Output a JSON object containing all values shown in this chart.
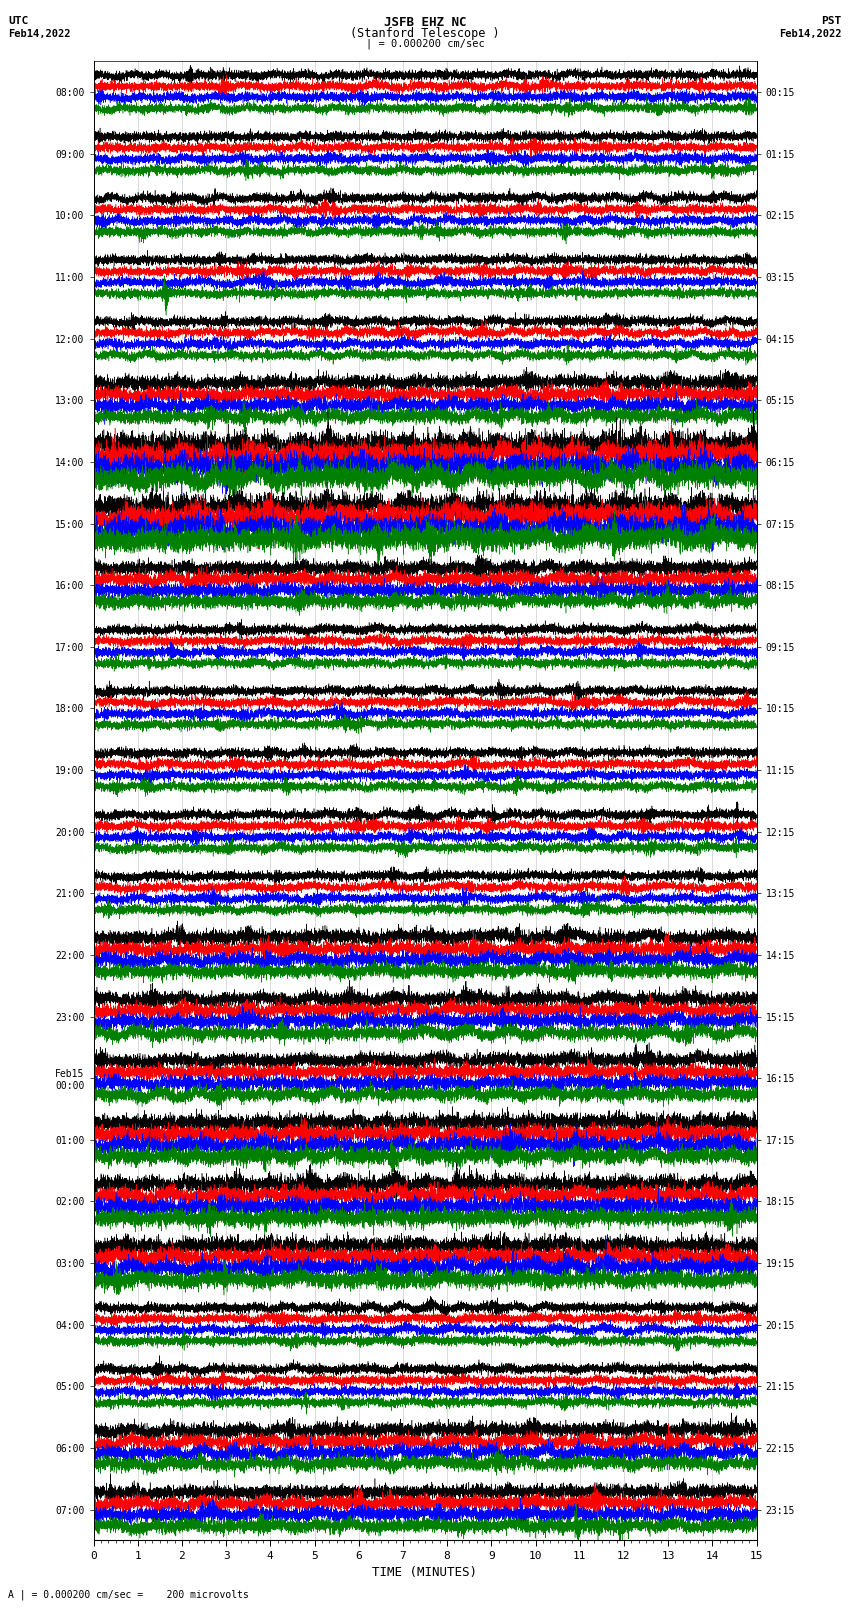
{
  "title_line1": "JSFB EHZ NC",
  "title_line2": "(Stanford Telescope )",
  "scale_text": "| = 0.000200 cm/sec",
  "label_left_top": "UTC",
  "label_left_date": "Feb14,2022",
  "label_right_top": "PST",
  "label_right_date": "Feb14,2022",
  "scale_annotation": "A | = 0.000200 cm/sec =    200 microvolts",
  "xlabel": "TIME (MINUTES)",
  "utc_times": [
    "08:00",
    "09:00",
    "10:00",
    "11:00",
    "12:00",
    "13:00",
    "14:00",
    "15:00",
    "16:00",
    "17:00",
    "18:00",
    "19:00",
    "20:00",
    "21:00",
    "22:00",
    "23:00",
    "Feb15\n00:00",
    "01:00",
    "02:00",
    "03:00",
    "04:00",
    "05:00",
    "06:00",
    "07:00"
  ],
  "pst_times": [
    "00:15",
    "01:15",
    "02:15",
    "03:15",
    "04:15",
    "05:15",
    "06:15",
    "07:15",
    "08:15",
    "09:15",
    "10:15",
    "11:15",
    "12:15",
    "13:15",
    "14:15",
    "15:15",
    "16:15",
    "17:15",
    "18:15",
    "19:15",
    "20:15",
    "21:15",
    "22:15",
    "23:15"
  ],
  "colors": [
    "black",
    "red",
    "blue",
    "green"
  ],
  "n_rows": 24,
  "n_traces_per_row": 4,
  "x_min": 0,
  "x_max": 15,
  "background_color": "white",
  "noise_seed": 42
}
